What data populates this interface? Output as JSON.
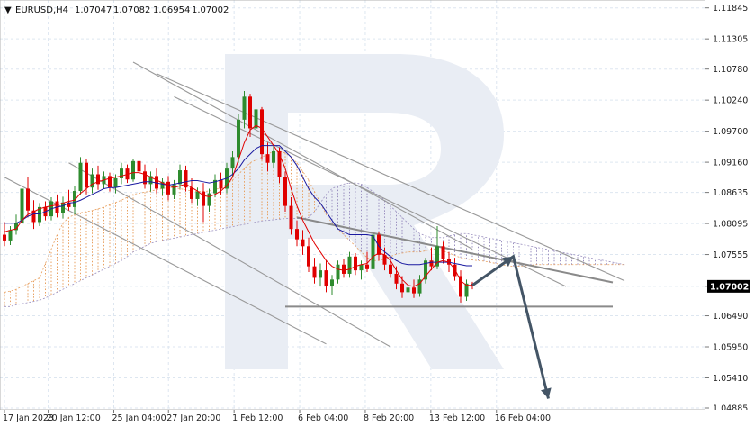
{
  "header": {
    "menu_glyph": "▼",
    "symbol": "EURUSD,H4",
    "ohlc": [
      "1.07047",
      "1.07082",
      "1.06954",
      "1.07002"
    ]
  },
  "current_price": "1.07002",
  "colors": {
    "bull": "#2e8b2e",
    "bear": "#e00000",
    "tenkan": "#e00000",
    "kijun": "#1a1aa0",
    "cloud_a": "#e8a060",
    "cloud_b": "#9a8fbf",
    "trendline": "#999999",
    "arrow": "#445566",
    "grid": "#dde6f0",
    "watermark": "#e9edf4",
    "badge": "#000000"
  },
  "chart_data": {
    "type": "candlestick",
    "ylim": [
      1.04885,
      1.1195
    ],
    "y_ticks": [
      "1.11845",
      "1.11305",
      "1.10780",
      "1.10240",
      "1.09700",
      "1.09160",
      "1.08635",
      "1.08095",
      "1.07555",
      "1.07002",
      "1.06490",
      "1.05950",
      "1.05410",
      "1.04885"
    ],
    "x_ticks": [
      "17 Jan 2023",
      "20 Jan 12:00",
      "25 Jan 04:00",
      "27 Jan 20:00",
      "1 Feb 12:00",
      "6 Feb 04:00",
      "8 Feb 20:00",
      "13 Feb 12:00",
      "16 Feb 04:00"
    ],
    "candles": [
      [
        1.079,
        1.0812,
        1.077,
        1.078
      ],
      [
        1.078,
        1.0805,
        1.0772,
        1.0798
      ],
      [
        1.0798,
        1.0825,
        1.079,
        1.081
      ],
      [
        1.081,
        1.088,
        1.08,
        1.087
      ],
      [
        1.087,
        1.089,
        1.082,
        1.0832
      ],
      [
        1.0832,
        1.085,
        1.08,
        1.0812
      ],
      [
        1.0812,
        1.0845,
        1.0805,
        1.0838
      ],
      [
        1.0838,
        1.0848,
        1.0815,
        1.0822
      ],
      [
        1.0822,
        1.0855,
        1.0815,
        1.0848
      ],
      [
        1.0848,
        1.086,
        1.082,
        1.0828
      ],
      [
        1.0828,
        1.0856,
        1.0818,
        1.0846
      ],
      [
        1.0846,
        1.0868,
        1.0832,
        1.0838
      ],
      [
        1.0838,
        1.0875,
        1.0825,
        1.0866
      ],
      [
        1.0866,
        1.0925,
        1.086,
        1.0915
      ],
      [
        1.0915,
        1.0922,
        1.086,
        1.0872
      ],
      [
        1.0872,
        1.0905,
        1.0862,
        1.0895
      ],
      [
        1.0895,
        1.091,
        1.0868,
        1.0878
      ],
      [
        1.0878,
        1.09,
        1.087,
        1.0892
      ],
      [
        1.0892,
        1.0898,
        1.0865,
        1.0872
      ],
      [
        1.0872,
        1.0895,
        1.0862,
        1.0888
      ],
      [
        1.0888,
        1.0915,
        1.0878,
        1.0905
      ],
      [
        1.0905,
        1.0912,
        1.088,
        1.0886
      ],
      [
        1.0886,
        1.0922,
        1.0882,
        1.0918
      ],
      [
        1.0918,
        1.093,
        1.089,
        1.09
      ],
      [
        1.09,
        1.0912,
        1.087,
        1.0878
      ],
      [
        1.0878,
        1.09,
        1.0865,
        1.0892
      ],
      [
        1.0892,
        1.0905,
        1.0862,
        1.087
      ],
      [
        1.087,
        1.0888,
        1.0858,
        1.0882
      ],
      [
        1.0882,
        1.0892,
        1.085,
        1.086
      ],
      [
        1.086,
        1.0885,
        1.0852,
        1.0878
      ],
      [
        1.0878,
        1.0912,
        1.087,
        1.0902
      ],
      [
        1.0902,
        1.091,
        1.0865,
        1.0872
      ],
      [
        1.0872,
        1.0888,
        1.0845,
        1.0852
      ],
      [
        1.0852,
        1.0872,
        1.084,
        1.0865
      ],
      [
        1.0865,
        1.088,
        1.0812,
        1.084
      ],
      [
        1.084,
        1.087,
        1.083,
        1.0862
      ],
      [
        1.0862,
        1.0895,
        1.0855,
        1.0885
      ],
      [
        1.0885,
        1.0898,
        1.086,
        1.087
      ],
      [
        1.087,
        1.0915,
        1.0862,
        1.0905
      ],
      [
        1.0905,
        1.0935,
        1.089,
        1.0925
      ],
      [
        1.0925,
        1.1,
        1.0915,
        1.099
      ],
      [
        1.099,
        1.104,
        1.0975,
        1.103
      ],
      [
        1.103,
        1.1035,
        1.096,
        1.0975
      ],
      [
        1.0975,
        1.102,
        1.095,
        1.1008
      ],
      [
        1.1008,
        1.1012,
        1.092,
        1.093
      ],
      [
        1.093,
        1.095,
        1.09,
        1.0915
      ],
      [
        1.0915,
        1.0945,
        1.0905,
        1.0935
      ],
      [
        1.0935,
        1.0942,
        1.088,
        1.089
      ],
      [
        1.089,
        1.09,
        1.083,
        1.084
      ],
      [
        1.084,
        1.0855,
        1.079,
        1.08
      ],
      [
        1.08,
        1.0815,
        1.077,
        1.0782
      ],
      [
        1.0782,
        1.0798,
        1.0755,
        1.077
      ],
      [
        1.077,
        1.0785,
        1.0725,
        1.0735
      ],
      [
        1.0735,
        1.075,
        1.0705,
        1.0715
      ],
      [
        1.0715,
        1.074,
        1.07,
        1.0728
      ],
      [
        1.0728,
        1.0745,
        1.069,
        1.07
      ],
      [
        1.07,
        1.072,
        1.0685,
        1.0712
      ],
      [
        1.0712,
        1.0745,
        1.0705,
        1.0738
      ],
      [
        1.0738,
        1.0748,
        1.0715,
        1.0722
      ],
      [
        1.0722,
        1.076,
        1.0715,
        1.0752
      ],
      [
        1.0752,
        1.0758,
        1.072,
        1.0728
      ],
      [
        1.0728,
        1.0745,
        1.0712,
        1.0738
      ],
      [
        1.0738,
        1.076,
        1.0725,
        1.073
      ],
      [
        1.073,
        1.08,
        1.0725,
        1.079
      ],
      [
        1.079,
        1.0795,
        1.0745,
        1.0755
      ],
      [
        1.0755,
        1.0768,
        1.0728,
        1.0738
      ],
      [
        1.0738,
        1.075,
        1.0715,
        1.0722
      ],
      [
        1.0722,
        1.0735,
        1.0695,
        1.0705
      ],
      [
        1.0705,
        1.0718,
        1.068,
        1.069
      ],
      [
        1.069,
        1.0705,
        1.0675,
        1.0698
      ],
      [
        1.0698,
        1.0712,
        1.068,
        1.0688
      ],
      [
        1.0688,
        1.072,
        1.0682,
        1.0712
      ],
      [
        1.0712,
        1.075,
        1.0705,
        1.0745
      ],
      [
        1.0745,
        1.0768,
        1.0728,
        1.0735
      ],
      [
        1.0735,
        1.0805,
        1.073,
        1.077
      ],
      [
        1.077,
        1.0778,
        1.074,
        1.0748
      ],
      [
        1.0748,
        1.076,
        1.0725,
        1.0738
      ],
      [
        1.0738,
        1.075,
        1.071,
        1.0718
      ],
      [
        1.0718,
        1.0728,
        1.0672,
        1.0682
      ],
      [
        1.0682,
        1.0712,
        1.0675,
        1.0705
      ],
      [
        1.0705,
        1.0708,
        1.0695,
        1.07
      ]
    ],
    "tenkan": [
      1.0795,
      1.0798,
      1.08,
      1.0815,
      1.0825,
      1.083,
      1.0835,
      1.0838,
      1.084,
      1.0842,
      1.0845,
      1.0848,
      1.085,
      1.0862,
      1.087,
      1.0878,
      1.0882,
      1.0885,
      1.0888,
      1.089,
      1.0892,
      1.0895,
      1.0898,
      1.0898,
      1.0895,
      1.089,
      1.0885,
      1.088,
      1.0876,
      1.0872,
      1.0875,
      1.0878,
      1.0872,
      1.0866,
      1.0858,
      1.0856,
      1.086,
      1.0866,
      1.0875,
      1.089,
      1.092,
      1.095,
      1.0972,
      1.098,
      1.0975,
      1.096,
      1.0945,
      1.093,
      1.0905,
      1.087,
      1.084,
      1.0815,
      1.0795,
      1.0775,
      1.076,
      1.0745,
      1.0735,
      1.073,
      1.0728,
      1.073,
      1.0735,
      1.0738,
      1.074,
      1.0752,
      1.0758,
      1.0755,
      1.0745,
      1.0728,
      1.0712,
      1.0702,
      1.07,
      1.0705,
      1.0718,
      1.073,
      1.0742,
      1.0745,
      1.0742,
      1.073,
      1.071,
      1.0702,
      1.0702
    ],
    "kijun": [
      1.081,
      1.081,
      1.081,
      1.0815,
      1.0822,
      1.0826,
      1.0826,
      1.083,
      1.0835,
      1.0838,
      1.084,
      1.0845,
      1.0846,
      1.085,
      1.0855,
      1.086,
      1.0865,
      1.087,
      1.0872,
      1.0872,
      1.0874,
      1.0876,
      1.0878,
      1.088,
      1.0882,
      1.0882,
      1.088,
      1.0878,
      1.0876,
      1.0878,
      1.088,
      1.0882,
      1.0884,
      1.0884,
      1.0882,
      1.088,
      1.0882,
      1.0885,
      1.0888,
      1.0895,
      1.0905,
      1.092,
      1.093,
      1.094,
      1.0945,
      1.0945,
      1.0945,
      1.0945,
      1.0935,
      1.0925,
      1.091,
      1.089,
      1.087,
      1.0855,
      1.0845,
      1.083,
      1.0815,
      1.08,
      1.0795,
      1.079,
      1.079,
      1.079,
      1.079,
      1.0788,
      1.077,
      1.076,
      1.0752,
      1.0745,
      1.074,
      1.0738,
      1.0738,
      1.0738,
      1.074,
      1.0742,
      1.0742,
      1.0742,
      1.0742,
      1.074,
      1.0738,
      1.0736,
      1.0736
    ],
    "cloud": {
      "x_start": 0,
      "span_a": [
        1.069,
        1.0692,
        1.0695,
        1.07,
        1.0705,
        1.071,
        1.0715,
        1.074,
        1.0765,
        1.079,
        1.081,
        1.082,
        1.0825,
        1.0828,
        1.083,
        1.0832,
        1.0835,
        1.0838,
        1.0842,
        1.0846,
        1.085,
        1.0855,
        1.086,
        1.0862,
        1.0864,
        1.0866,
        1.0868,
        1.087,
        1.0872,
        1.0872,
        1.087,
        1.0868,
        1.0866,
        1.0865,
        1.0865,
        1.0866,
        1.0868,
        1.0872,
        1.0878,
        1.0885,
        1.0895,
        1.0905,
        1.0915,
        1.092,
        1.0925,
        1.093,
        1.0935,
        1.0935,
        1.0932,
        1.0925,
        1.0915,
        1.09,
        1.0885,
        1.0865,
        1.0845,
        1.0825,
        1.081,
        1.08,
        1.079,
        1.078,
        1.077,
        1.076,
        1.075,
        1.0745,
        1.0745,
        1.0748,
        1.0752,
        1.0756,
        1.0758,
        1.076,
        1.076,
        1.076,
        1.0762,
        1.0765,
        1.0765,
        1.0762,
        1.0758,
        1.0754,
        1.075,
        1.0748,
        1.0746,
        1.0745,
        1.0744,
        1.0742,
        1.074,
        1.0738,
        1.0736,
        1.0735,
        1.0735,
        1.0736,
        1.0737,
        1.0738,
        1.0738,
        1.0738,
        1.0738,
        1.0738,
        1.0738,
        1.0738,
        1.0738,
        1.0738,
        1.0738,
        1.0738,
        1.0738,
        1.0738,
        1.0738,
        1.0738,
        1.0738
      ],
      "span_b": [
        1.0665,
        1.0665,
        1.0668,
        1.067,
        1.0672,
        1.0674,
        1.0676,
        1.068,
        1.0685,
        1.069,
        1.0695,
        1.07,
        1.0705,
        1.071,
        1.0715,
        1.072,
        1.0725,
        1.073,
        1.0735,
        1.074,
        1.0745,
        1.0752,
        1.076,
        1.0765,
        1.077,
        1.0775,
        1.0778,
        1.078,
        1.0782,
        1.0784,
        1.0786,
        1.0788,
        1.079,
        1.0792,
        1.0794,
        1.0796,
        1.0798,
        1.08,
        1.0802,
        1.0804,
        1.0806,
        1.0808,
        1.081,
        1.0812,
        1.0814,
        1.0815,
        1.0816,
        1.0817,
        1.0818,
        1.0818,
        1.0818,
        1.0818,
        1.082,
        1.083,
        1.0845,
        1.086,
        1.087,
        1.0875,
        1.0878,
        1.088,
        1.088,
        1.0878,
        1.0872,
        1.0865,
        1.0858,
        1.085,
        1.084,
        1.083,
        1.082,
        1.081,
        1.08,
        1.0792,
        1.0788,
        1.0785,
        1.0785,
        1.0785,
        1.0788,
        1.079,
        1.0792,
        1.0792,
        1.079,
        1.0788,
        1.0786,
        1.0784,
        1.0782,
        1.078,
        1.0778,
        1.0776,
        1.0774,
        1.0772,
        1.077,
        1.0768,
        1.0766,
        1.0764,
        1.0762,
        1.076,
        1.0758,
        1.0756,
        1.0754,
        1.0752,
        1.075,
        1.0748,
        1.0746,
        1.0744,
        1.0742,
        1.074,
        1.0738
      ]
    },
    "trendlines": [
      {
        "name": "upper-channel-line",
        "from": [
          22,
          1.109
        ],
        "to": [
          80,
          1.0765
        ]
      },
      {
        "name": "upper-parallel-line",
        "from": [
          26,
          1.107
        ],
        "to": [
          106,
          1.071
        ]
      },
      {
        "name": "descending-line-1",
        "from": [
          11,
          1.0915
        ],
        "to": [
          66,
          1.0595
        ]
      },
      {
        "name": "descending-line-2",
        "from": [
          0,
          1.089
        ],
        "to": [
          55,
          1.06
        ]
      },
      {
        "name": "descending-line-3",
        "from": [
          29,
          1.103
        ],
        "to": [
          96,
          1.07
        ]
      },
      {
        "name": "triangle-upper",
        "from": [
          50,
          1.082
        ],
        "to": [
          104,
          1.0707
        ]
      },
      {
        "name": "support-line",
        "from": [
          48,
          1.0665
        ],
        "to": [
          104,
          1.0665
        ]
      }
    ],
    "forecast": {
      "up_from": [
        80,
        1.0702
      ],
      "up_to": [
        87,
        1.0752
      ],
      "down_to": [
        93,
        1.0505
      ]
    }
  }
}
